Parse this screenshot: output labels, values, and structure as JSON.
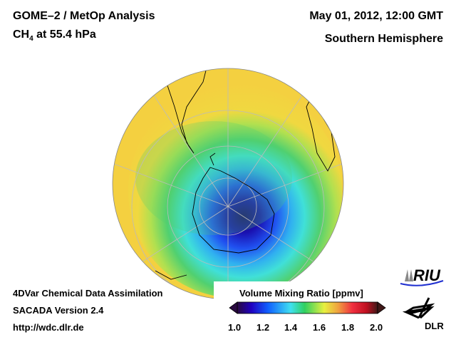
{
  "header": {
    "title": "GOME–2 / MetOp Analysis",
    "species": "CH",
    "species_sub": "4",
    "level": " at 55.4 hPa",
    "datetime": "May 01, 2012, 12:00 GMT",
    "region": "Southern Hemisphere"
  },
  "footer": {
    "line1": "4DVar Chemical Data Assimilation",
    "line2": "SACADA Version 2.4",
    "url": "http://wdc.dlr.de"
  },
  "colorbar": {
    "title": "Volume Mixing Ratio [ppmv]",
    "ticks": [
      "1.0",
      "1.2",
      "1.4",
      "1.6",
      "1.8",
      "2.0"
    ],
    "range": [
      1.0,
      2.0
    ],
    "colors": [
      "#2a0a40",
      "#2000c0",
      "#1060ff",
      "#40e0f0",
      "#30d060",
      "#e8f040",
      "#f0a040",
      "#f03040",
      "#c01020",
      "#401818"
    ]
  },
  "logos": {
    "riu": "RIU",
    "dlr": "DLR"
  }
}
